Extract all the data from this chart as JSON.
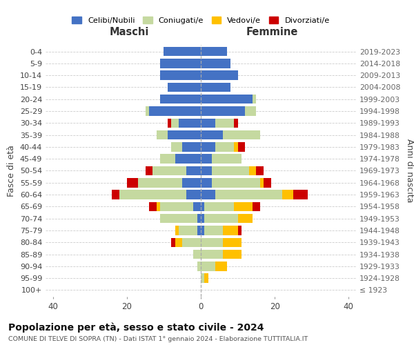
{
  "age_groups": [
    "0-4",
    "5-9",
    "10-14",
    "15-19",
    "20-24",
    "25-29",
    "30-34",
    "35-39",
    "40-44",
    "45-49",
    "50-54",
    "55-59",
    "60-64",
    "65-69",
    "70-74",
    "75-79",
    "80-84",
    "85-89",
    "90-94",
    "95-99",
    "100+"
  ],
  "birth_years": [
    "2019-2023",
    "2014-2018",
    "2009-2013",
    "2004-2008",
    "1999-2003",
    "1994-1998",
    "1989-1993",
    "1984-1988",
    "1979-1983",
    "1974-1978",
    "1969-1973",
    "1964-1968",
    "1959-1963",
    "1954-1958",
    "1949-1953",
    "1944-1948",
    "1939-1943",
    "1934-1938",
    "1929-1933",
    "1924-1928",
    "≤ 1923"
  ],
  "colors": {
    "celibi": "#4472c4",
    "coniugati": "#c5d9a0",
    "vedovi": "#ffc000",
    "divorziati": "#cc0000"
  },
  "male": {
    "celibi": [
      10,
      11,
      11,
      9,
      11,
      14,
      6,
      9,
      5,
      7,
      4,
      5,
      4,
      2,
      1,
      1,
      0,
      0,
      0,
      0,
      0
    ],
    "coniugati": [
      0,
      0,
      0,
      0,
      0,
      1,
      2,
      3,
      3,
      4,
      9,
      12,
      18,
      9,
      10,
      5,
      5,
      2,
      1,
      0,
      0
    ],
    "vedovi": [
      0,
      0,
      0,
      0,
      0,
      0,
      0,
      0,
      0,
      0,
      0,
      0,
      0,
      1,
      0,
      1,
      2,
      0,
      0,
      0,
      0
    ],
    "divorziati": [
      0,
      0,
      0,
      0,
      0,
      0,
      1,
      0,
      0,
      0,
      2,
      3,
      2,
      2,
      0,
      0,
      1,
      0,
      0,
      0,
      0
    ]
  },
  "female": {
    "celibi": [
      7,
      8,
      10,
      8,
      14,
      12,
      4,
      6,
      4,
      3,
      3,
      3,
      4,
      1,
      1,
      1,
      0,
      0,
      0,
      0,
      0
    ],
    "coniugati": [
      0,
      0,
      0,
      0,
      1,
      3,
      5,
      10,
      5,
      8,
      10,
      13,
      18,
      8,
      9,
      5,
      6,
      6,
      4,
      1,
      0
    ],
    "vedovi": [
      0,
      0,
      0,
      0,
      0,
      0,
      0,
      0,
      1,
      0,
      2,
      1,
      3,
      5,
      4,
      4,
      5,
      5,
      3,
      1,
      0
    ],
    "divorziati": [
      0,
      0,
      0,
      0,
      0,
      0,
      1,
      0,
      2,
      0,
      2,
      2,
      4,
      2,
      0,
      1,
      0,
      0,
      0,
      0,
      0
    ]
  },
  "xlim": 42,
  "title": "Popolazione per età, sesso e stato civile - 2024",
  "subtitle": "COMUNE DI TELVE DI SOPRA (TN) - Dati ISTAT 1° gennaio 2024 - Elaborazione TUTTITALIA.IT",
  "legend_labels": [
    "Celibi/Nubili",
    "Coniugati/e",
    "Vedovi/e",
    "Divorziati/e"
  ],
  "ylabel_left": "Fasce di età",
  "ylabel_right": "Anni di nascita",
  "xlabel_male": "Maschi",
  "xlabel_female": "Femmine"
}
